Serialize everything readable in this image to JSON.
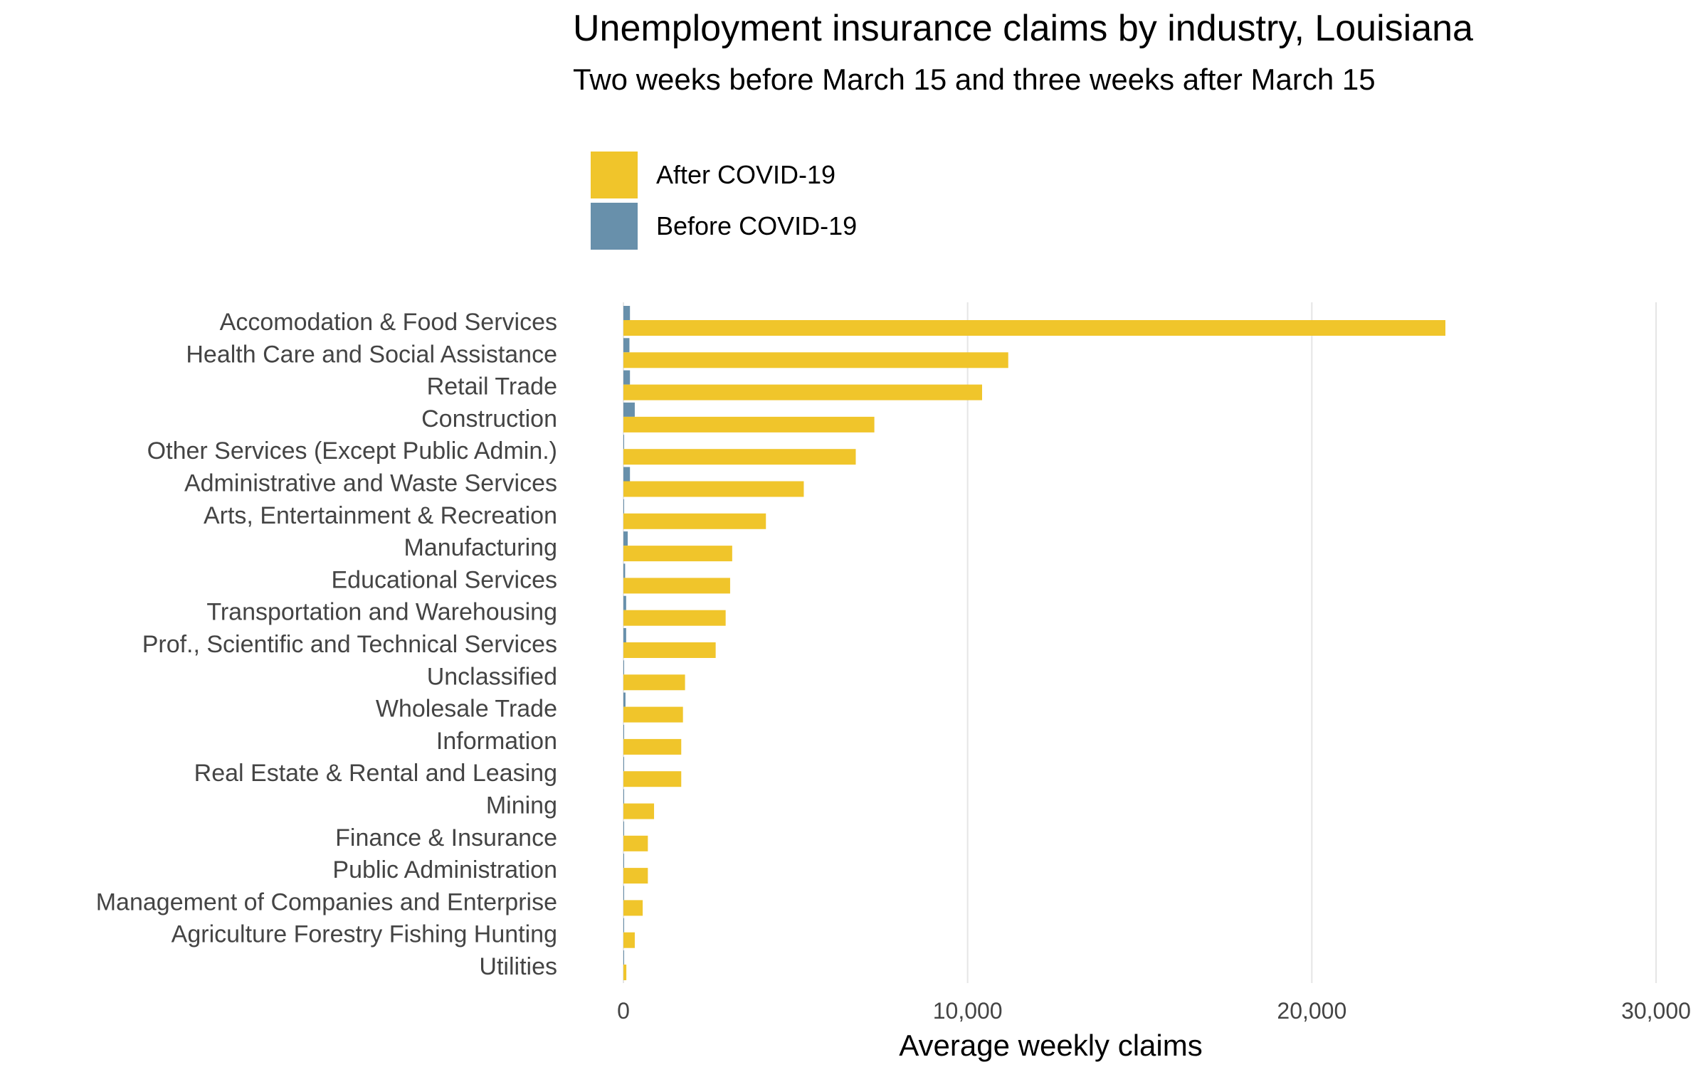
{
  "chart_data": {
    "type": "bar",
    "orientation": "horizontal",
    "title": "Unemployment insurance claims by industry, Louisiana",
    "subtitle": "Two weeks before March 15 and three weeks after March 15",
    "xlabel": "Average weekly claims",
    "ylabel": "",
    "xlim": [
      0,
      30000
    ],
    "xticks": [
      0,
      10000,
      20000,
      30000
    ],
    "xtick_labels": [
      "0",
      "10,000",
      "20,000",
      "30,000"
    ],
    "grid": true,
    "legend_position": "top-left",
    "categories": [
      "Accomodation & Food Services",
      "Health Care and Social Assistance",
      "Retail Trade",
      "Construction",
      "Other Services (Except Public Admin.)",
      "Administrative and Waste Services",
      "Arts, Entertainment & Recreation",
      "Manufacturing",
      "Educational Services",
      "Transportation and Warehousing",
      "Prof., Scientific and Technical Services",
      "Unclassified",
      "Wholesale Trade",
      "Information",
      "Real Estate & Rental and Leasing",
      "Mining",
      "Finance & Insurance",
      "Public Administration",
      "Management of Companies and Enterprise",
      "Agriculture Forestry Fishing Hunting",
      "Utilities"
    ],
    "series": [
      {
        "name": "Before COVID-19",
        "color": "#6890ab",
        "values": [
          190,
          175,
          190,
          330,
          20,
          190,
          15,
          125,
          50,
          80,
          80,
          10,
          60,
          20,
          15,
          20,
          20,
          10,
          10,
          5,
          5
        ]
      },
      {
        "name": "After COVID-19",
        "color": "#f0c52b",
        "values": [
          23880,
          11180,
          10420,
          7290,
          6750,
          5240,
          4140,
          3160,
          3100,
          2970,
          2680,
          1790,
          1730,
          1680,
          1680,
          890,
          710,
          710,
          560,
          330,
          85
        ]
      }
    ]
  },
  "legend": {
    "items": [
      {
        "label": "After COVID-19",
        "color": "#f0c52b"
      },
      {
        "label": "Before COVID-19",
        "color": "#6890ab"
      }
    ]
  },
  "colors": {
    "grid": "#e5e5e5"
  }
}
